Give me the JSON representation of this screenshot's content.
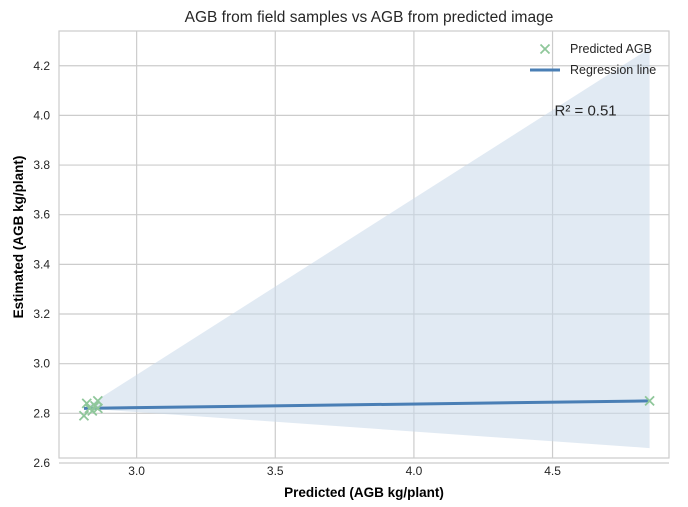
{
  "chart_data": {
    "type": "scatter",
    "title": "AGB from field samples vs AGB from predicted image",
    "xlabel": "Predicted (AGB kg/plant)",
    "ylabel": "Estimated (AGB kg/plant)",
    "xlim": [
      2.72,
      4.92
    ],
    "ylim": [
      2.62,
      4.34
    ],
    "xticks": [
      3.0,
      3.5,
      4.0,
      4.5
    ],
    "yticks": [
      2.6,
      2.8,
      3.0,
      3.2,
      3.4,
      3.6,
      3.8,
      4.0,
      4.2
    ],
    "grid": true,
    "legend_position": "top-right",
    "series": [
      {
        "name": "Predicted AGB",
        "kind": "scatter",
        "marker": "x",
        "color": "#8fc79a",
        "points": [
          {
            "x": 2.81,
            "y": 2.79
          },
          {
            "x": 2.82,
            "y": 2.84
          },
          {
            "x": 2.83,
            "y": 2.82
          },
          {
            "x": 2.84,
            "y": 2.81
          },
          {
            "x": 2.85,
            "y": 2.83
          },
          {
            "x": 2.86,
            "y": 2.85
          },
          {
            "x": 2.86,
            "y": 2.82
          },
          {
            "x": 4.85,
            "y": 2.85
          }
        ]
      },
      {
        "name": "Regression line",
        "kind": "line",
        "color": "#4a7fb5",
        "points": [
          {
            "x": 2.81,
            "y": 2.82
          },
          {
            "x": 4.85,
            "y": 2.85
          }
        ]
      }
    ],
    "confidence_band": {
      "color": "#c9d8ea",
      "upper": [
        {
          "x": 2.81,
          "y": 2.82
        },
        {
          "x": 4.85,
          "y": 4.27
        }
      ],
      "lower": [
        {
          "x": 2.81,
          "y": 2.82
        },
        {
          "x": 4.85,
          "y": 2.66
        }
      ]
    },
    "annotations": [
      {
        "text": "R² = 0.51",
        "x": 4.5,
        "y": 4.02
      }
    ],
    "colors": {
      "background": "#ffffff",
      "plot_border": "#cccccc",
      "grid": "#cccccc"
    }
  }
}
